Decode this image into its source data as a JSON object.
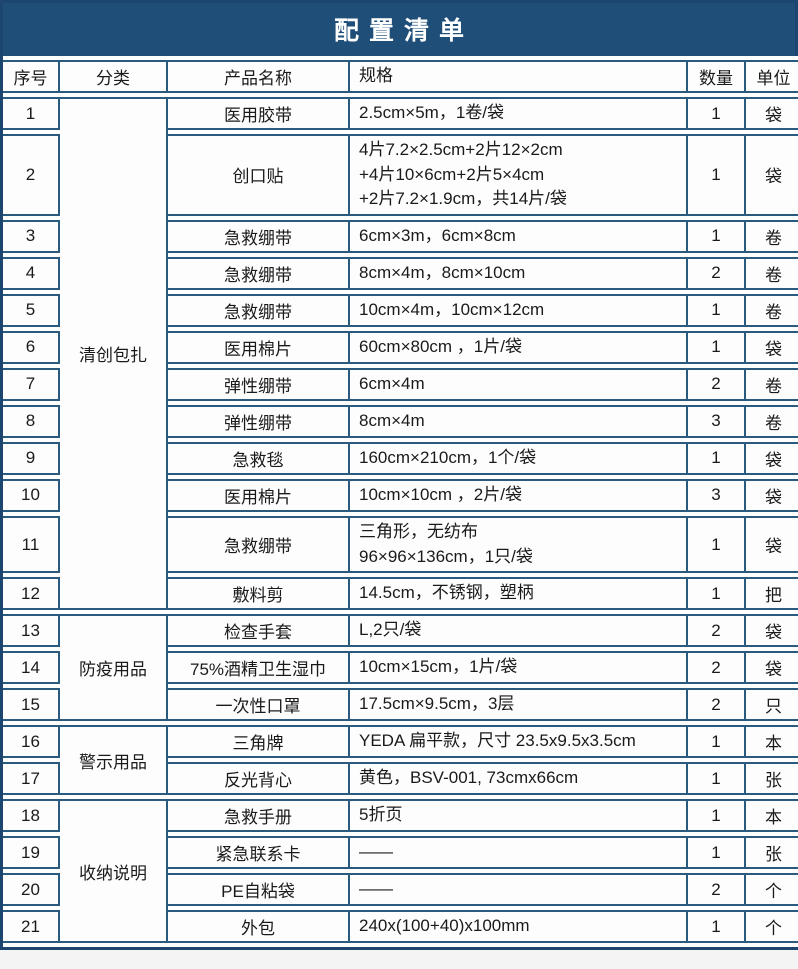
{
  "title": "配置清单",
  "columns": [
    "序号",
    "分类",
    "产品名称",
    "规格",
    "数量",
    "单位"
  ],
  "categories": [
    {
      "label": "清创包扎",
      "start": 1,
      "span": 12
    },
    {
      "label": "防疫用品",
      "start": 13,
      "span": 3
    },
    {
      "label": "警示用品",
      "start": 16,
      "span": 2
    },
    {
      "label": "收纳说明",
      "start": 18,
      "span": 4
    }
  ],
  "rows": [
    {
      "no": "1",
      "name": "医用胶带",
      "spec": "2.5cm×5m，1卷/袋",
      "qty": "1",
      "unit": "袋"
    },
    {
      "no": "2",
      "name": "创口贴",
      "spec": "4片7.2×2.5cm+2片12×2cm\n+4片10×6cm+2片5×4cm\n+2片7.2×1.9cm，共14片/袋",
      "qty": "1",
      "unit": "袋"
    },
    {
      "no": "3",
      "name": "急救绷带",
      "spec": "6cm×3m，6cm×8cm",
      "qty": "1",
      "unit": "卷"
    },
    {
      "no": "4",
      "name": "急救绷带",
      "spec": "8cm×4m，8cm×10cm",
      "qty": "2",
      "unit": "卷"
    },
    {
      "no": "5",
      "name": "急救绷带",
      "spec": "10cm×4m，10cm×12cm",
      "qty": "1",
      "unit": "卷"
    },
    {
      "no": "6",
      "name": "医用棉片",
      "spec": "60cm×80cm ，1片/袋",
      "qty": "1",
      "unit": "袋"
    },
    {
      "no": "7",
      "name": "弹性绷带",
      "spec": "6cm×4m",
      "qty": "2",
      "unit": "卷"
    },
    {
      "no": "8",
      "name": "弹性绷带",
      "spec": "8cm×4m",
      "qty": "3",
      "unit": "卷"
    },
    {
      "no": "9",
      "name": "急救毯",
      "spec": "160cm×210cm，1个/袋",
      "qty": "1",
      "unit": "袋"
    },
    {
      "no": "10",
      "name": "医用棉片",
      "spec": "10cm×10cm ，2片/袋",
      "qty": "3",
      "unit": "袋"
    },
    {
      "no": "11",
      "name": "急救绷带",
      "spec": "三角形，无纺布\n96×96×136cm，1只/袋",
      "qty": "1",
      "unit": "袋"
    },
    {
      "no": "12",
      "name": "敷料剪",
      "spec": "14.5cm，不锈钢，塑柄",
      "qty": "1",
      "unit": "把"
    },
    {
      "no": "13",
      "name": "检查手套",
      "spec": "L,2只/袋",
      "qty": "2",
      "unit": "袋"
    },
    {
      "no": "14",
      "name": "75%酒精卫生湿巾",
      "spec": "10cm×15cm，1片/袋",
      "qty": "2",
      "unit": "袋"
    },
    {
      "no": "15",
      "name": "一次性口罩",
      "spec": "17.5cm×9.5cm，3层",
      "qty": "2",
      "unit": "只"
    },
    {
      "no": "16",
      "name": "三角牌",
      "spec": "YEDA 扁平款，尺寸 23.5x9.5x3.5cm",
      "qty": "1",
      "unit": "本"
    },
    {
      "no": "17",
      "name": "反光背心",
      "spec": "黄色，BSV-001, 73cmx66cm",
      "qty": "1",
      "unit": "张"
    },
    {
      "no": "18",
      "name": "急救手册",
      "spec": "5折页",
      "qty": "1",
      "unit": "本"
    },
    {
      "no": "19",
      "name": "紧急联系卡",
      "spec": "——",
      "qty": "1",
      "unit": "张"
    },
    {
      "no": "20",
      "name": "PE自粘袋",
      "spec": "——",
      "qty": "2",
      "unit": "个"
    },
    {
      "no": "21",
      "name": "外包",
      "spec": "240x(100+40)x100mm",
      "qty": "1",
      "unit": "个"
    }
  ],
  "colors": {
    "title_background": "#1f4e79",
    "title_text": "#ffffff",
    "border": "#2a5a7d",
    "outer_border": "#1c4670",
    "cell_background": "#fdfdfd",
    "text": "#1a1a1a"
  }
}
